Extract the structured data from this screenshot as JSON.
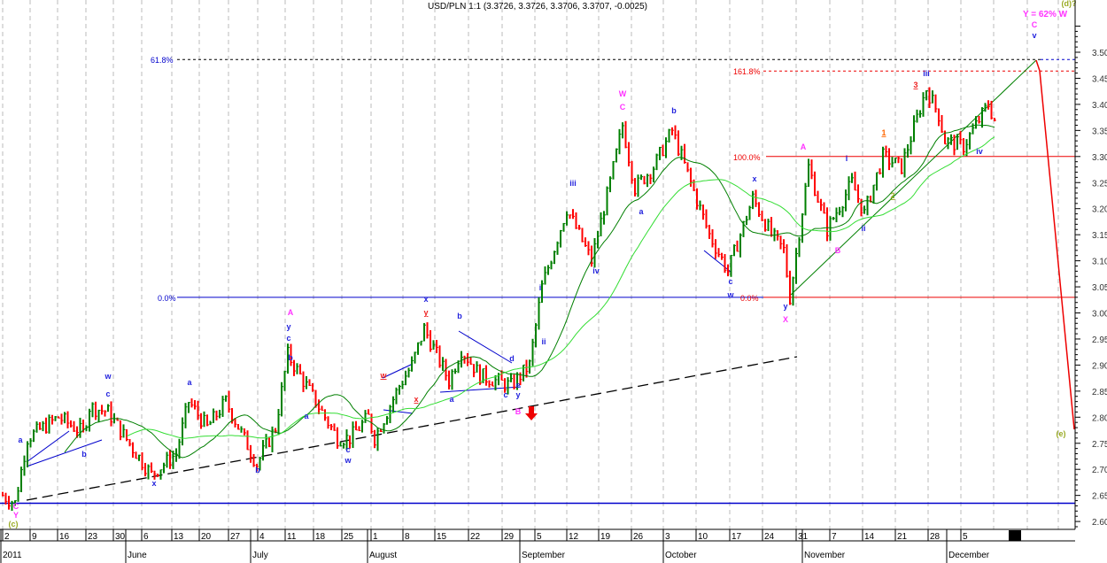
{
  "chart_data": {
    "type": "candlestick",
    "title": "USD/PLN 1:1 (3.3726, 3.3726, 3.3706, 3.3707, -0.0025)",
    "ylim": [
      2.55,
      3.55
    ],
    "y_ticks": [
      "3.50",
      "3.45",
      "3.40",
      "3.35",
      "3.30",
      "3.25",
      "3.20",
      "3.15",
      "3.10",
      "3.05",
      "3.00",
      "2.95",
      "2.90",
      "2.85",
      "2.80",
      "2.75",
      "2.70",
      "2.65",
      "2.60"
    ],
    "x_week_labels": [
      "2",
      "9",
      "16",
      "23",
      "30",
      "6",
      "13",
      "20",
      "27",
      "4",
      "11",
      "18",
      "25",
      "1",
      "8",
      "15",
      "22",
      "29",
      "5",
      "12",
      "19",
      "26",
      "3",
      "10",
      "17",
      "24",
      "31",
      "7",
      "14",
      "21",
      "28",
      "5"
    ],
    "x_month_labels": [
      "2011",
      "June",
      "July",
      "August",
      "September",
      "October",
      "November",
      "December"
    ],
    "price_path_day_price": [
      [
        0,
        2.65
      ],
      [
        2,
        2.635
      ],
      [
        4,
        2.76
      ],
      [
        9,
        2.8
      ],
      [
        13,
        2.77
      ],
      [
        14,
        2.82
      ],
      [
        17,
        2.81
      ],
      [
        21,
        2.74
      ],
      [
        24,
        2.69
      ],
      [
        28,
        2.73
      ],
      [
        30,
        2.83
      ],
      [
        33,
        2.78
      ],
      [
        36,
        2.83
      ],
      [
        41,
        2.71
      ],
      [
        44,
        2.78
      ],
      [
        46,
        2.92
      ],
      [
        49,
        2.86
      ],
      [
        54,
        2.76
      ],
      [
        56,
        2.76
      ],
      [
        59,
        2.8
      ],
      [
        60,
        2.76
      ],
      [
        64,
        2.86
      ],
      [
        66,
        2.9
      ],
      [
        68,
        2.97
      ],
      [
        72,
        2.87
      ],
      [
        74,
        2.93
      ],
      [
        77,
        2.88
      ],
      [
        82,
        2.86
      ],
      [
        85,
        2.9
      ],
      [
        87,
        3.05
      ],
      [
        91,
        3.2
      ],
      [
        95,
        3.1
      ],
      [
        98,
        3.25
      ],
      [
        100,
        3.36
      ],
      [
        102,
        3.24
      ],
      [
        105,
        3.28
      ],
      [
        108,
        3.35
      ],
      [
        111,
        3.25
      ],
      [
        114,
        3.15
      ],
      [
        117,
        3.08
      ],
      [
        121,
        3.22
      ],
      [
        124,
        3.15
      ],
      [
        126,
        3.12
      ],
      [
        127,
        3.03
      ],
      [
        130,
        3.28
      ],
      [
        133,
        3.16
      ],
      [
        137,
        3.25
      ],
      [
        139,
        3.19
      ],
      [
        142,
        3.3
      ],
      [
        145,
        3.28
      ],
      [
        149,
        3.43
      ],
      [
        151,
        3.38
      ],
      [
        152,
        3.33
      ],
      [
        155,
        3.32
      ],
      [
        159,
        3.4
      ],
      [
        160,
        3.37
      ]
    ],
    "moving_averages": [
      {
        "name": "SMA short",
        "color": "#007f00"
      },
      {
        "name": "SMA long",
        "color": "#33dd33"
      }
    ],
    "fib_levels": [
      {
        "label": "61.8%",
        "price": 3.486,
        "color": "#0000cc"
      },
      {
        "label": "161.8%",
        "price": 3.464,
        "color": "#ee0000"
      },
      {
        "label": "100.0%",
        "price": 3.3,
        "color": "#ee0000"
      },
      {
        "label": "0.0%",
        "price": 3.03,
        "color": "#0000cc"
      },
      {
        "label": "0.0%",
        "price": 3.03,
        "color": "#ee0000"
      }
    ],
    "support_line_price": 2.635,
    "colors": {
      "up": "#008000",
      "down": "#ff0000",
      "wave_minor": "#2222dd",
      "wave_major": "#ff33ff",
      "wave_red": "#ee2222",
      "wave_olive": "#99aa22",
      "wave_orange": "#ff6600"
    },
    "annotations": [
      {
        "text": "C",
        "color": "#ff33ff"
      },
      {
        "text": "Y",
        "color": "#ff33ff"
      },
      {
        "text": "(c)",
        "color": "#99aa22"
      },
      {
        "text": "a",
        "color": "#2222dd"
      },
      {
        "text": "b",
        "color": "#2222dd"
      },
      {
        "text": "w",
        "color": "#2222dd"
      },
      {
        "text": "c",
        "color": "#2222dd"
      },
      {
        "text": "a",
        "color": "#2222dd"
      },
      {
        "text": "x",
        "color": "#2222dd"
      },
      {
        "text": "b",
        "color": "#2222dd"
      },
      {
        "text": "A",
        "color": "#ff33ff"
      },
      {
        "text": "y",
        "color": "#2222dd"
      },
      {
        "text": "c",
        "color": "#2222dd"
      },
      {
        "text": "b",
        "color": "#2222dd"
      },
      {
        "text": "a",
        "color": "#2222dd"
      },
      {
        "text": "c",
        "color": "#2222dd"
      },
      {
        "text": "w",
        "color": "#2222dd"
      },
      {
        "text": "w",
        "color": "#ee2222"
      },
      {
        "text": "x",
        "color": "#ee2222"
      },
      {
        "text": "x",
        "color": "#2222dd"
      },
      {
        "text": "y",
        "color": "#ee2222"
      },
      {
        "text": "b",
        "color": "#2222dd"
      },
      {
        "text": "a",
        "color": "#2222dd"
      },
      {
        "text": "d",
        "color": "#2222dd"
      },
      {
        "text": "e",
        "color": "#2222dd"
      },
      {
        "text": "c",
        "color": "#2222dd"
      },
      {
        "text": "y",
        "color": "#2222dd"
      },
      {
        "text": "B",
        "color": "#ff33ff"
      },
      {
        "text": "i",
        "color": "#2222dd"
      },
      {
        "text": "ii",
        "color": "#2222dd"
      },
      {
        "text": "iii",
        "color": "#2222dd"
      },
      {
        "text": "iv",
        "color": "#2222dd"
      },
      {
        "text": "W",
        "color": "#ff33ff"
      },
      {
        "text": "C",
        "color": "#ff33ff"
      },
      {
        "text": "b",
        "color": "#2222dd"
      },
      {
        "text": "a",
        "color": "#2222dd"
      },
      {
        "text": "c",
        "color": "#2222dd"
      },
      {
        "text": "w",
        "color": "#2222dd"
      },
      {
        "text": "x",
        "color": "#2222dd"
      },
      {
        "text": "y",
        "color": "#2222dd"
      },
      {
        "text": "X",
        "color": "#ff33ff"
      },
      {
        "text": "A",
        "color": "#ff33ff"
      },
      {
        "text": "i",
        "color": "#2222dd"
      },
      {
        "text": "B",
        "color": "#ff33ff"
      },
      {
        "text": "ii",
        "color": "#2222dd"
      },
      {
        "text": "1",
        "color": "#ff6600"
      },
      {
        "text": "2",
        "color": "#99aa22"
      },
      {
        "text": "3",
        "color": "#ee2222"
      },
      {
        "text": "iii",
        "color": "#2222dd"
      },
      {
        "text": "iv",
        "color": "#2222dd"
      },
      {
        "text": "v",
        "color": "#2222dd"
      },
      {
        "text": "C",
        "color": "#ff33ff"
      },
      {
        "text": "Y = 62% W",
        "color": "#ff33ff"
      },
      {
        "text": "(d)?",
        "color": "#99aa22"
      },
      {
        "text": "(e)",
        "color": "#99aa22"
      }
    ]
  }
}
